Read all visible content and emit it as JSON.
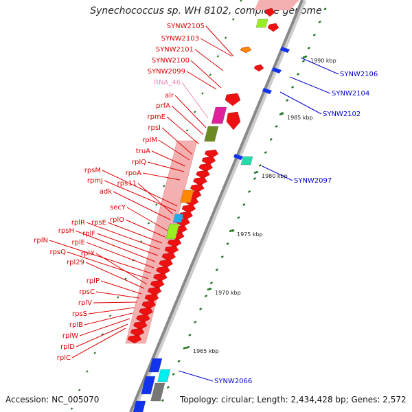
{
  "title": "Synechococcus sp. WH 8102, complete genome",
  "accession": "Accession: NC_005070",
  "summary": "Topology: circular; Length: 2,434,428 bp; Genes: 2,572",
  "colors": {
    "left_label": "#dd0000",
    "right_label": "#0000cc",
    "rna_label": "#ee88bb",
    "backbone": "#888888",
    "tick": "#227722",
    "operon_bar": "#f0a0a0"
  },
  "ticks": [
    "1990 kbp",
    "1985 kbp",
    "1980 kbp",
    "1975 kbp",
    "1970 kbp",
    "1965 kbp"
  ],
  "left_labels": [
    "SYNW2105",
    "SYNW2103",
    "SYNW2101",
    "SYNW2100",
    "SYNW2099",
    "RNA_46",
    "alr",
    "prfA",
    "rpmE",
    "rpsI",
    "rplM",
    "truA",
    "rplQ",
    "rpoA",
    "rpsM",
    "rpmJ",
    "rps11",
    "adk",
    "secY",
    "rplO",
    "rpsE",
    "rplR",
    "rplF",
    "rpsH",
    "rplE",
    "rplN",
    "rpsQ",
    "rplX",
    "rpl29",
    "rplP",
    "rpsC",
    "rplV",
    "rpsS",
    "rplB",
    "rplW",
    "rplD",
    "rplC"
  ],
  "right_labels": [
    "SYNW2106",
    "SYNW2104",
    "SYNW2102",
    "SYNW2097",
    "SYNW2066"
  ]
}
